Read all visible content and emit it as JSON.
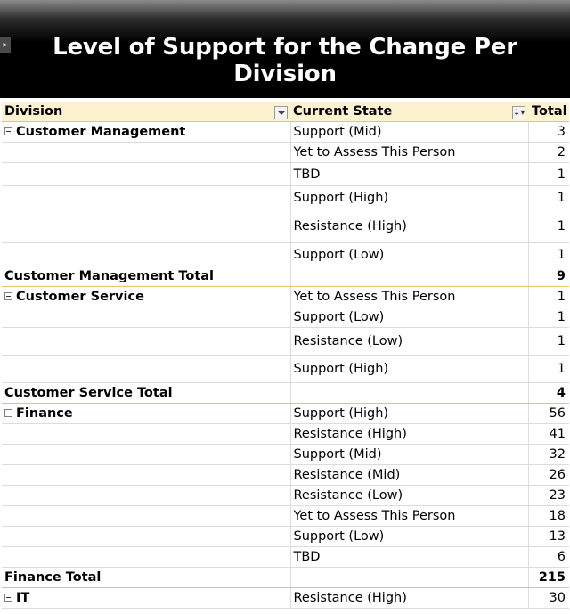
{
  "title": "Level of Support for the Change Per Division",
  "headers": {
    "division": "Division",
    "current_state": "Current State",
    "total": "Total"
  },
  "groups": [
    {
      "division": "Customer Management",
      "rows": [
        {
          "state": "Support (Mid)",
          "total": "3"
        },
        {
          "state": "Yet to Assess This Person",
          "total": "2"
        },
        {
          "state": "TBD",
          "total": "1"
        },
        {
          "state": "Support (High)",
          "total": "1"
        },
        {
          "state": "Resistance (High)",
          "total": "1"
        },
        {
          "state": "Support (Low)",
          "total": "1"
        }
      ],
      "total_label": "Customer Management Total",
      "total": "9"
    },
    {
      "division": "Customer Service",
      "rows": [
        {
          "state": "Yet to Assess This Person",
          "total": "1"
        },
        {
          "state": "Support (Low)",
          "total": "1"
        },
        {
          "state": "Resistance (Low)",
          "total": "1"
        },
        {
          "state": "Support (High)",
          "total": "1"
        }
      ],
      "total_label": "Customer Service Total",
      "total": "4"
    },
    {
      "division": "Finance",
      "rows": [
        {
          "state": "Support (High)",
          "total": "56"
        },
        {
          "state": "Resistance (High)",
          "total": "41"
        },
        {
          "state": "Support (Mid)",
          "total": "32"
        },
        {
          "state": "Resistance (Mid)",
          "total": "26"
        },
        {
          "state": "Resistance (Low)",
          "total": "23"
        },
        {
          "state": "Yet to Assess This Person",
          "total": "18"
        },
        {
          "state": "Support (Low)",
          "total": "13"
        },
        {
          "state": "TBD",
          "total": "6"
        }
      ],
      "total_label": "Finance Total",
      "total": "215"
    },
    {
      "division": "IT",
      "rows": [
        {
          "state": "Resistance (High)",
          "total": "30"
        }
      ]
    }
  ],
  "colors": {
    "header_bg": "#fdf1cf",
    "accent_line": "#e9c660",
    "banner": "#000000"
  },
  "icons": {
    "collapse": "minus-box-icon",
    "dropdown": "dropdown-arrow-icon",
    "filter": "filter-sort-icon"
  }
}
